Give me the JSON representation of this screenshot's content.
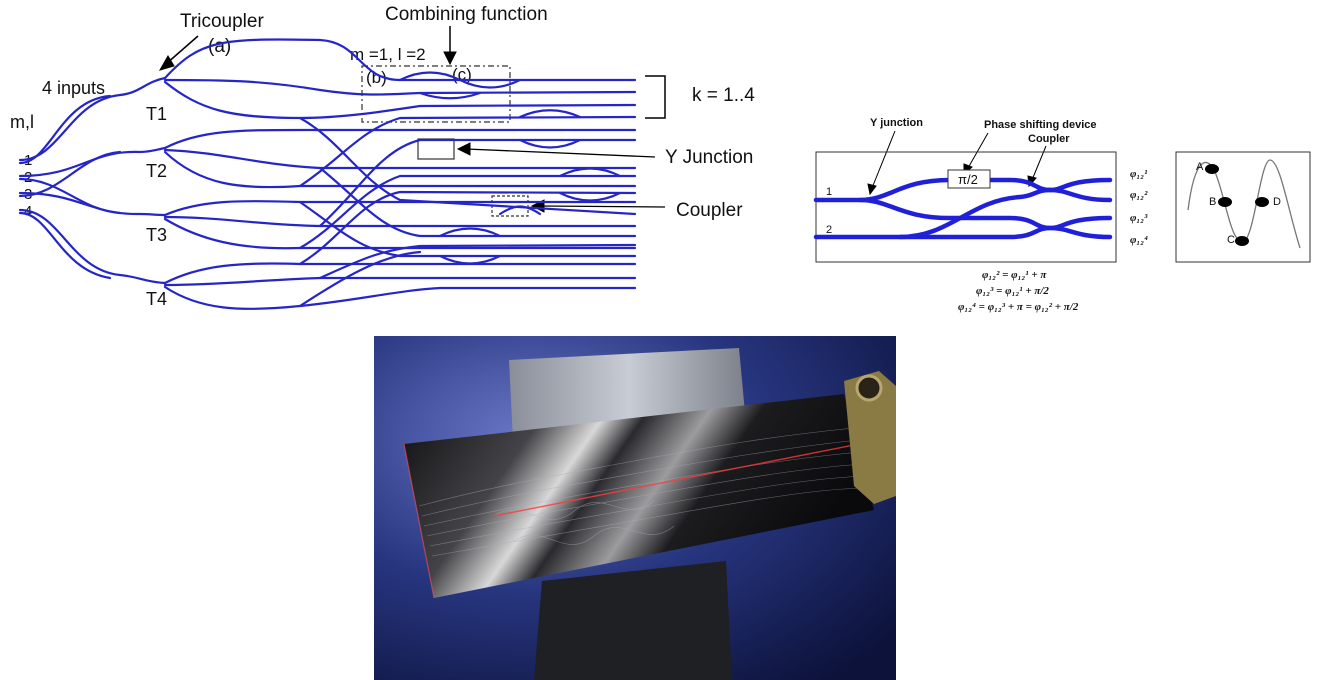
{
  "left_diagram": {
    "title_tricoupler": "Tricoupler",
    "label_a": "(a)",
    "title_combining": "Combining function",
    "label_ml": "m =1, l =2",
    "label_b": "(b)",
    "label_c": "(c)",
    "label_inputs": "4 inputs",
    "label_mi": "m,l",
    "inputs": [
      "1",
      "2",
      "3",
      "4"
    ],
    "tricouplers": [
      "T1",
      "T2",
      "T3",
      "T4"
    ],
    "label_k": "k = 1..4",
    "label_y_junction": "Y Junction",
    "label_coupler": "Coupler"
  },
  "right_diagram": {
    "label_y_junction": "Y junction",
    "label_phase": "Phase shifting device",
    "label_coupler": "Coupler",
    "phase_box": "π/2",
    "port_1": "1",
    "port_2": "2",
    "outputs": [
      "φ₁₂¹",
      "φ₁₂²",
      "φ₁₂³",
      "φ₁₂⁴"
    ],
    "equations": [
      "φ₁₂² = φ₁₂¹ + π",
      "φ₁₂³ = φ₁₂¹ + π/2",
      "φ₁₂⁴ = φ₁₂³ + π = φ₁₂² + π/2"
    ],
    "points": [
      "A",
      "B",
      "C",
      "D"
    ]
  },
  "photo": {
    "colors": {
      "background": "#1a2a6a",
      "chip": "#111111",
      "laser": "#ff3a3a"
    }
  }
}
